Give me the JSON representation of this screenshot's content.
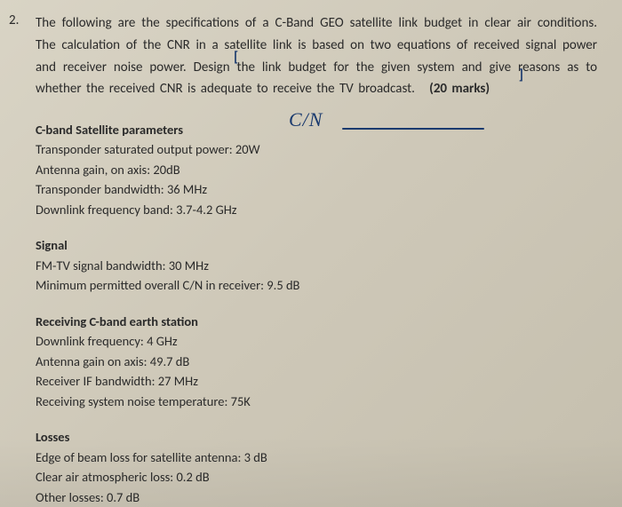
{
  "question": {
    "number": "2.",
    "text_line1": "The following are the specifications of a C-Band GEO satellite link budget in clear air",
    "text_line2": "conditions. The calculation of the CNR in a satellite link is based on two equations of received",
    "text_line3": "signal power and receiver noise power. Design the link budget for the given system and give",
    "text_line4": "reasons as to whether the received CNR is adequate to receive the TV broadcast.",
    "marks": "(20 marks)"
  },
  "handwritten": {
    "text": "C/N",
    "color": "#1a3a6e"
  },
  "sections": {
    "satellite": {
      "title": "C-band Satellite parameters",
      "lines": [
        "Transponder saturated output power: 20W",
        "Antenna gain, on axis: 20dB",
        "Transponder bandwidth: 36 MHz",
        "Downlink frequency band: 3.7-4.2 GHz"
      ]
    },
    "signal": {
      "title": "Signal",
      "lines": [
        "FM-TV signal bandwidth: 30 MHz",
        "Minimum permitted overall C/N in receiver: 9.5 dB"
      ]
    },
    "earthstation": {
      "title": "Receiving C-band earth station",
      "lines": [
        "Downlink frequency: 4 GHz",
        "Antenna gain on axis: 49.7 dB",
        "Receiver IF bandwidth: 27 MHz",
        "Receiving system noise temperature: 75K"
      ]
    },
    "losses": {
      "title": "Losses",
      "lines": [
        "Edge of beam loss for satellite antenna: 3 dB",
        "Clear air atmospheric loss: 0.2 dB",
        "Other losses: 0.7 dB"
      ]
    }
  }
}
